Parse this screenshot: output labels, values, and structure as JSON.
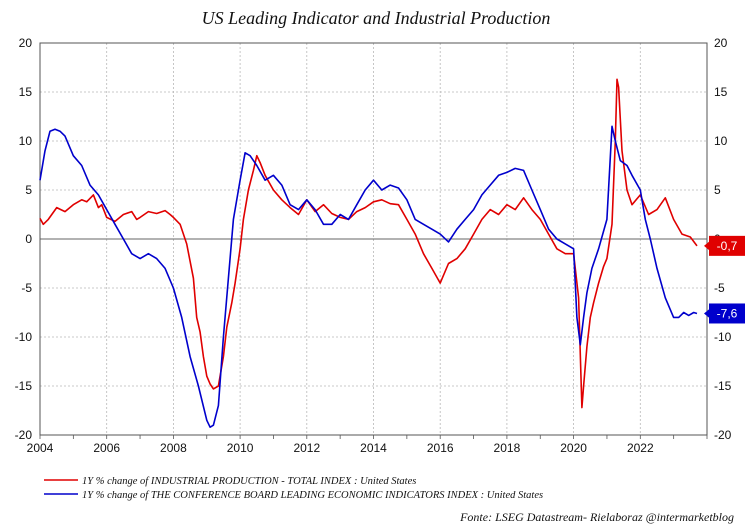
{
  "chart_data": {
    "type": "line",
    "title": "US Leading Indicator and Industrial Production",
    "xlabel": "",
    "ylabel": "",
    "xlim": [
      2004.0,
      2024.0
    ],
    "ylim": [
      -20,
      20
    ],
    "yticks": [
      -20,
      -15,
      -10,
      -5,
      0,
      5,
      10,
      15,
      20
    ],
    "xticks": [
      2004,
      2006,
      2008,
      2010,
      2012,
      2014,
      2016,
      2018,
      2020,
      2022
    ],
    "grid": true,
    "legend_position": "bottom-left",
    "source": "Fonte: LSEG Datastream- Rielaboraz @intermarketblog",
    "series": [
      {
        "name": "1Y % change of INDUSTRIAL PRODUCTION - TOTAL INDEX : United States",
        "color": "#e00000",
        "last_label": "-0,7",
        "x": [
          2004.0,
          2004.1,
          2004.25,
          2004.5,
          2004.75,
          2005.0,
          2005.25,
          2005.4,
          2005.6,
          2005.75,
          2005.85,
          2006.0,
          2006.25,
          2006.5,
          2006.75,
          2006.9,
          2007.0,
          2007.25,
          2007.5,
          2007.75,
          2007.9,
          2008.0,
          2008.2,
          2008.4,
          2008.6,
          2008.7,
          2008.8,
          2008.9,
          2009.0,
          2009.1,
          2009.2,
          2009.35,
          2009.5,
          2009.6,
          2009.75,
          2009.85,
          2010.0,
          2010.1,
          2010.25,
          2010.4,
          2010.5,
          2010.6,
          2010.75,
          2011.0,
          2011.25,
          2011.5,
          2011.75,
          2012.0,
          2012.25,
          2012.5,
          2012.75,
          2013.0,
          2013.25,
          2013.5,
          2013.75,
          2014.0,
          2014.25,
          2014.5,
          2014.75,
          2015.0,
          2015.25,
          2015.5,
          2015.75,
          2016.0,
          2016.25,
          2016.5,
          2016.75,
          2017.0,
          2017.25,
          2017.5,
          2017.75,
          2018.0,
          2018.25,
          2018.5,
          2018.75,
          2019.0,
          2019.25,
          2019.5,
          2019.75,
          2020.0,
          2020.15,
          2020.25,
          2020.3,
          2020.4,
          2020.5,
          2020.6,
          2020.75,
          2020.9,
          2021.0,
          2021.15,
          2021.25,
          2021.3,
          2021.35,
          2021.45,
          2021.6,
          2021.75,
          2022.0,
          2022.25,
          2022.5,
          2022.75,
          2023.0,
          2023.25,
          2023.5,
          2023.7
        ],
        "values": [
          2.1,
          1.5,
          2.0,
          3.2,
          2.8,
          3.5,
          4.0,
          3.8,
          4.5,
          3.2,
          3.5,
          2.2,
          1.8,
          2.5,
          2.8,
          2.0,
          2.2,
          2.8,
          2.6,
          2.9,
          2.5,
          2.2,
          1.5,
          -0.5,
          -4.0,
          -8.0,
          -9.5,
          -12.0,
          -14.0,
          -14.8,
          -15.3,
          -15.0,
          -12.0,
          -9.0,
          -6.5,
          -4.5,
          -1.0,
          2.0,
          5.0,
          7.0,
          8.5,
          7.8,
          6.5,
          5.0,
          4.0,
          3.2,
          2.5,
          4.0,
          2.8,
          3.5,
          2.6,
          2.2,
          2.0,
          2.8,
          3.2,
          3.8,
          4.0,
          3.6,
          3.5,
          2.0,
          0.5,
          -1.5,
          -3.0,
          -4.5,
          -2.5,
          -2.0,
          -1.0,
          0.5,
          2.0,
          3.0,
          2.5,
          3.5,
          3.0,
          4.2,
          3.0,
          2.0,
          0.5,
          -1.0,
          -1.5,
          -1.5,
          -6.0,
          -17.2,
          -15.0,
          -11.0,
          -8.0,
          -6.5,
          -4.5,
          -2.8,
          -2.0,
          1.5,
          10.0,
          16.3,
          15.5,
          9.0,
          5.0,
          3.5,
          4.5,
          2.5,
          3.0,
          4.2,
          2.0,
          0.5,
          0.2,
          -0.7
        ]
      },
      {
        "name": "1Y % change of THE CONFERENCE BOARD LEADING ECONOMIC INDICATORS INDEX : United States",
        "color": "#0000cc",
        "last_label": "-7,6",
        "x": [
          2004.0,
          2004.15,
          2004.3,
          2004.45,
          2004.6,
          2004.75,
          2005.0,
          2005.25,
          2005.5,
          2005.75,
          2006.0,
          2006.25,
          2006.5,
          2006.75,
          2007.0,
          2007.25,
          2007.5,
          2007.75,
          2008.0,
          2008.25,
          2008.5,
          2008.75,
          2009.0,
          2009.1,
          2009.2,
          2009.35,
          2009.5,
          2009.65,
          2009.8,
          2010.0,
          2010.15,
          2010.3,
          2010.5,
          2010.75,
          2011.0,
          2011.25,
          2011.5,
          2011.75,
          2012.0,
          2012.25,
          2012.5,
          2012.75,
          2013.0,
          2013.25,
          2013.5,
          2013.75,
          2014.0,
          2014.25,
          2014.5,
          2014.75,
          2015.0,
          2015.25,
          2015.5,
          2015.75,
          2016.0,
          2016.25,
          2016.5,
          2016.75,
          2017.0,
          2017.25,
          2017.5,
          2017.75,
          2018.0,
          2018.25,
          2018.5,
          2018.75,
          2019.0,
          2019.25,
          2019.5,
          2019.75,
          2020.0,
          2020.1,
          2020.2,
          2020.3,
          2020.4,
          2020.55,
          2020.75,
          2021.0,
          2021.15,
          2021.25,
          2021.4,
          2021.6,
          2021.75,
          2022.0,
          2022.15,
          2022.3,
          2022.5,
          2022.75,
          2023.0,
          2023.15,
          2023.3,
          2023.45,
          2023.6,
          2023.7
        ],
        "values": [
          6.0,
          9.0,
          11.0,
          11.2,
          11.0,
          10.5,
          8.5,
          7.5,
          5.5,
          4.5,
          3.0,
          1.5,
          0.0,
          -1.5,
          -2.0,
          -1.5,
          -2.0,
          -3.0,
          -5.0,
          -8.0,
          -12.0,
          -15.0,
          -18.5,
          -19.2,
          -19.0,
          -17.0,
          -10.0,
          -4.0,
          2.0,
          6.0,
          8.8,
          8.5,
          7.5,
          6.0,
          6.5,
          5.5,
          3.5,
          3.0,
          4.0,
          3.0,
          1.5,
          1.5,
          2.5,
          2.0,
          3.5,
          5.0,
          6.0,
          5.0,
          5.5,
          5.2,
          4.0,
          2.0,
          1.5,
          1.0,
          0.5,
          -0.3,
          1.0,
          2.0,
          3.0,
          4.5,
          5.5,
          6.5,
          6.8,
          7.2,
          7.0,
          5.0,
          3.0,
          1.0,
          0.0,
          -0.5,
          -1.0,
          -8.0,
          -10.8,
          -8.0,
          -5.5,
          -3.0,
          -1.0,
          2.0,
          11.5,
          10.0,
          8.0,
          7.5,
          6.5,
          5.0,
          2.0,
          0.0,
          -3.0,
          -6.0,
          -8.0,
          -8.0,
          -7.5,
          -7.8,
          -7.5,
          -7.6
        ]
      }
    ],
    "hline": 0
  }
}
